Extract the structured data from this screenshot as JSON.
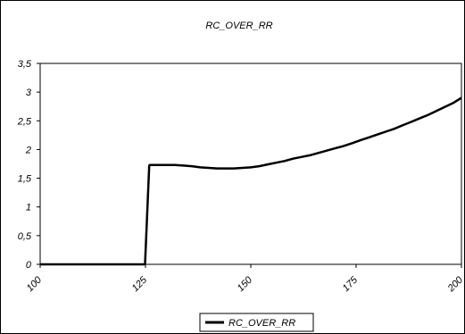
{
  "chart_data": {
    "type": "line",
    "title": "RC_OVER_RR",
    "xlabel": "",
    "ylabel": "",
    "xlim": [
      100,
      200
    ],
    "ylim": [
      0,
      3.5
    ],
    "x_ticks": [
      "100",
      "125",
      "150",
      "175",
      "200"
    ],
    "y_ticks": [
      "0",
      "0,5",
      "1",
      "1,5",
      "2",
      "2,5",
      "3",
      "3,5"
    ],
    "grid": false,
    "legend_position": "bottom-center",
    "series": [
      {
        "name": "RC_OVER_RR",
        "color": "#000000",
        "x": [
          100,
          105,
          110,
          115,
          120,
          124.9,
          125.9,
          126,
          128,
          130,
          132,
          134,
          136,
          138,
          140,
          142,
          144,
          146,
          148,
          150,
          152,
          154,
          156,
          158,
          160,
          162,
          164,
          166,
          168,
          170,
          172,
          174,
          176,
          178,
          180,
          182,
          184,
          186,
          188,
          190,
          192,
          194,
          196,
          198,
          200
        ],
        "y": [
          0,
          0,
          0,
          0,
          0,
          0,
          1.72,
          1.73,
          1.73,
          1.73,
          1.73,
          1.72,
          1.71,
          1.69,
          1.68,
          1.67,
          1.67,
          1.67,
          1.68,
          1.69,
          1.71,
          1.74,
          1.77,
          1.8,
          1.84,
          1.87,
          1.9,
          1.94,
          1.98,
          2.02,
          2.06,
          2.11,
          2.16,
          2.21,
          2.26,
          2.31,
          2.36,
          2.42,
          2.48,
          2.54,
          2.6,
          2.67,
          2.74,
          2.81,
          2.9
        ]
      }
    ]
  }
}
